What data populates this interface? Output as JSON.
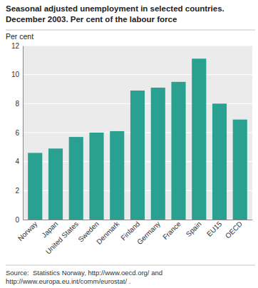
{
  "chart_data": {
    "type": "bar",
    "title": "Seasonal adjusted unemployment in selected countries.",
    "subtitle": "December 2003. Per cent of the labour force",
    "y_label": "Per cent",
    "annotations": [
      "Source:  Statistics Norway, http://www.oecd.org/ and",
      "http://www.europa.eu.int/comm/eurostat/ ."
    ],
    "categories": [
      "Norway",
      "Japan",
      "United States",
      "Sweden",
      "Denmark",
      "Finland",
      "Germany",
      "France",
      "Spain",
      "EU15",
      "OECD"
    ],
    "values": [
      4.6,
      4.9,
      5.7,
      6.0,
      6.1,
      8.9,
      9.1,
      9.5,
      11.1,
      8.0,
      6.9
    ],
    "color": "#2aa090",
    "ylim": [
      0,
      12
    ],
    "yticks": [
      0,
      2,
      4,
      6,
      8,
      10,
      12
    ],
    "grid": true
  }
}
